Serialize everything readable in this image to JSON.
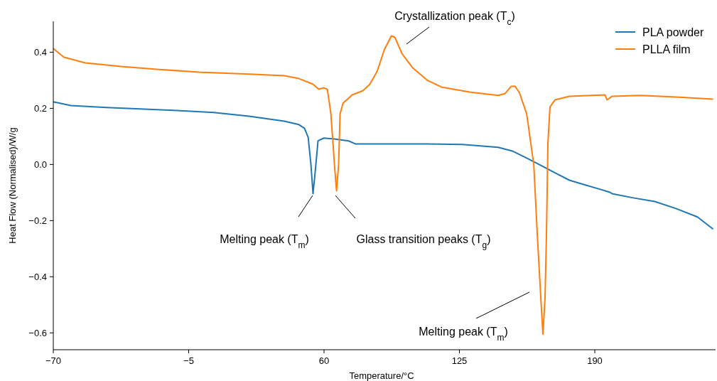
{
  "chart_data": {
    "type": "line",
    "xlabel": "Temperature/°C",
    "ylabel": "Heat Flow (Normalised)/W/g",
    "xlim": [
      -70,
      248
    ],
    "ylim": [
      -0.66,
      0.51
    ],
    "xticks": [
      {
        "value": -70,
        "label": "−70"
      },
      {
        "value": -5,
        "label": "−5"
      },
      60,
      125,
      190
    ],
    "yticks": [
      {
        "value": -0.6,
        "label": "−0.6"
      },
      {
        "value": -0.4,
        "label": "−0.4"
      },
      {
        "value": -0.2,
        "label": "−0.2"
      },
      {
        "value": 0,
        "label": "0.0"
      },
      0.2,
      0.4
    ],
    "legend": "top right",
    "grid": false,
    "line_style": "solid",
    "series": [
      {
        "name": "PLA powder",
        "color": "#1f77b4",
        "x": [
          -70,
          -61.5,
          -44.4,
          -10.2,
          7,
          24,
          41,
          47.9,
          50.6,
          52.4,
          53.7,
          54.7,
          55.8,
          57.1,
          59.9,
          65,
          71.8,
          75.2,
          92.3,
          109.4,
          126.5,
          143.6,
          150.4,
          157.3,
          164.1,
          170.9,
          177.8,
          184.6,
          191.5,
          197.3,
          198.3,
          208.5,
          218.8,
          229,
          239.3,
          246.8
        ],
        "values": [
          0.223,
          0.21,
          0.203,
          0.192,
          0.185,
          0.172,
          0.154,
          0.142,
          0.129,
          0.096,
          0.0,
          -0.104,
          -0.023,
          0.084,
          0.094,
          0.091,
          0.084,
          0.073,
          0.073,
          0.073,
          0.071,
          0.061,
          0.048,
          0.023,
          -0.003,
          -0.03,
          -0.056,
          -0.071,
          -0.086,
          -0.099,
          -0.104,
          -0.119,
          -0.132,
          -0.157,
          -0.187,
          -0.23
        ]
      },
      {
        "name": "PLLA film",
        "color": "#ff7f0e",
        "x": [
          -70,
          -64.9,
          -54.6,
          -37.5,
          -20.4,
          0,
          24,
          41,
          48,
          54.7,
          57.5,
          59.9,
          61.6,
          63.3,
          65,
          66,
          67,
          67.7,
          69.1,
          73.5,
          78.7,
          82,
          85.5,
          88.9,
          92.3,
          94,
          97.4,
          102.6,
          109.4,
          116.3,
          129.9,
          143.6,
          147,
          149.8,
          151.8,
          153.8,
          157.3,
          160.7,
          162.4,
          164.1,
          165.1,
          166.1,
          166.8,
          167.5,
          168.5,
          170.9,
          177.8,
          194.9,
          195.9,
          198.3,
          212,
          229,
          246.8
        ],
        "values": [
          0.413,
          0.382,
          0.362,
          0.349,
          0.339,
          0.329,
          0.322,
          0.316,
          0.306,
          0.286,
          0.268,
          0.273,
          0.268,
          0.18,
          0.0,
          -0.094,
          0.0,
          0.18,
          0.218,
          0.248,
          0.263,
          0.286,
          0.332,
          0.408,
          0.458,
          0.453,
          0.395,
          0.344,
          0.301,
          0.276,
          0.258,
          0.246,
          0.253,
          0.278,
          0.278,
          0.256,
          0.18,
          0.0,
          -0.25,
          -0.478,
          -0.605,
          -0.478,
          -0.25,
          0.078,
          0.205,
          0.23,
          0.243,
          0.248,
          0.23,
          0.243,
          0.246,
          0.24,
          0.233
        ]
      }
    ],
    "annotations": [
      "Crystallization peak (T$_{c}$)",
      "Melting peak (T$_{m}$)",
      "Glass transition peaks (T$_{g}$)",
      "Melting peak (T$_{m}$)"
    ]
  }
}
